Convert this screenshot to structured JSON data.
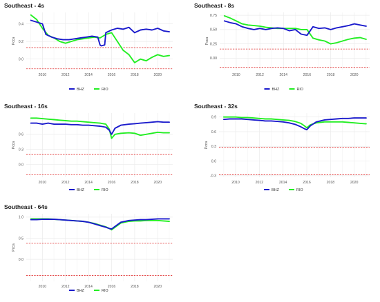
{
  "colors": {
    "BHZ": "#1a1acc",
    "RIO": "#22ee22",
    "threshold": "#e03030",
    "grid": "#ebebeb"
  },
  "chart_data": [
    {
      "type": "line",
      "title": "Southeast - 4s",
      "ylabel": "Pcca",
      "x_ticks": [
        "2010",
        "2012",
        "2014",
        "2016",
        "2018",
        "2020"
      ],
      "xlim": [
        2008.6,
        2021.3
      ],
      "ylim": [
        -0.12,
        0.53
      ],
      "y_ticks": [
        0.0,
        0.2,
        0.4
      ],
      "y_tick_labels": [
        "0.0",
        "0.2",
        "0.4"
      ],
      "thresholds": [
        0.13,
        -0.11
      ],
      "grid": true,
      "legend_placement": "bottom",
      "series": [
        {
          "name": "BHZ",
          "x": [
            2009.0,
            2009.5,
            2010.0,
            2010.3,
            2010.8,
            2011.3,
            2011.8,
            2012.3,
            2012.8,
            2013.3,
            2013.8,
            2014.3,
            2014.8,
            2015.0,
            2015.1,
            2015.4,
            2015.5,
            2016.0,
            2016.5,
            2017.0,
            2017.5,
            2018.0,
            2018.5,
            2019.0,
            2019.5,
            2020.0,
            2020.5,
            2021.0
          ],
          "y": [
            0.44,
            0.42,
            0.4,
            0.28,
            0.25,
            0.23,
            0.22,
            0.22,
            0.23,
            0.24,
            0.25,
            0.26,
            0.25,
            0.16,
            0.15,
            0.16,
            0.3,
            0.33,
            0.35,
            0.34,
            0.36,
            0.3,
            0.33,
            0.34,
            0.33,
            0.35,
            0.32,
            0.31
          ]
        },
        {
          "name": "RIO",
          "x": [
            2009.0,
            2009.5,
            2010.0,
            2010.5,
            2011.0,
            2011.5,
            2012.0,
            2012.5,
            2013.0,
            2013.5,
            2014.0,
            2014.5,
            2015.0,
            2015.5,
            2016.0,
            2016.5,
            2017.0,
            2017.5,
            2018.0,
            2018.5,
            2019.0,
            2019.5,
            2020.0,
            2020.5,
            2021.0
          ],
          "y": [
            0.5,
            0.45,
            0.35,
            0.27,
            0.24,
            0.2,
            0.18,
            0.2,
            0.22,
            0.23,
            0.24,
            0.25,
            0.24,
            0.28,
            0.3,
            0.2,
            0.1,
            0.05,
            -0.04,
            0.0,
            -0.02,
            0.02,
            0.05,
            0.03,
            0.04
          ]
        }
      ]
    },
    {
      "type": "line",
      "title": "Southeast - 8s",
      "ylabel": "Pcca",
      "x_ticks": [
        "2010",
        "2012",
        "2014",
        "2016",
        "2018",
        "2020"
      ],
      "xlim": [
        2008.6,
        2021.3
      ],
      "ylim": [
        -0.2,
        0.8
      ],
      "y_ticks": [
        0.0,
        0.25,
        0.5,
        0.75
      ],
      "y_tick_labels": [
        "0.00",
        "0.25",
        "0.50",
        "0.75"
      ],
      "thresholds": [
        0.16,
        -0.16
      ],
      "grid": true,
      "legend_placement": "bottom",
      "series": [
        {
          "name": "BHZ",
          "x": [
            2009.0,
            2009.5,
            2010.0,
            2010.5,
            2011.0,
            2011.5,
            2012.0,
            2012.5,
            2013.0,
            2013.5,
            2014.0,
            2014.5,
            2015.0,
            2015.5,
            2016.0,
            2016.5,
            2017.0,
            2017.5,
            2018.0,
            2018.5,
            2019.0,
            2019.5,
            2020.0,
            2020.5,
            2021.0
          ],
          "y": [
            0.65,
            0.62,
            0.6,
            0.55,
            0.52,
            0.5,
            0.52,
            0.5,
            0.52,
            0.53,
            0.52,
            0.48,
            0.5,
            0.42,
            0.4,
            0.55,
            0.52,
            0.53,
            0.5,
            0.53,
            0.55,
            0.57,
            0.6,
            0.58,
            0.56
          ]
        },
        {
          "name": "RIO",
          "x": [
            2009.0,
            2009.5,
            2010.0,
            2010.5,
            2011.0,
            2011.5,
            2012.0,
            2012.5,
            2013.0,
            2013.5,
            2014.0,
            2014.5,
            2015.0,
            2015.5,
            2016.0,
            2016.5,
            2017.0,
            2017.5,
            2018.0,
            2018.5,
            2019.0,
            2019.5,
            2020.0,
            2020.5,
            2021.0
          ],
          "y": [
            0.74,
            0.7,
            0.65,
            0.6,
            0.58,
            0.57,
            0.56,
            0.54,
            0.53,
            0.52,
            0.52,
            0.52,
            0.52,
            0.5,
            0.5,
            0.35,
            0.32,
            0.3,
            0.25,
            0.27,
            0.3,
            0.33,
            0.35,
            0.36,
            0.33
          ]
        }
      ]
    },
    {
      "type": "line",
      "title": "Southeast - 16s",
      "ylabel": "Pcca",
      "x_ticks": [
        "2010",
        "2012",
        "2014",
        "2016",
        "2018",
        "2020"
      ],
      "xlim": [
        2008.6,
        2021.3
      ],
      "ylim": [
        -0.25,
        1.02
      ],
      "y_ticks": [
        0.0,
        0.3,
        0.6
      ],
      "y_tick_labels": [
        "0.0",
        "0.3",
        "0.6"
      ],
      "thresholds": [
        0.2,
        -0.2
      ],
      "grid": true,
      "legend_placement": "bottom",
      "series": [
        {
          "name": "BHZ",
          "x": [
            2009.0,
            2009.5,
            2010.0,
            2010.5,
            2011.0,
            2011.5,
            2012.0,
            2012.5,
            2013.0,
            2013.5,
            2014.0,
            2014.5,
            2015.0,
            2015.5,
            2015.8,
            2016.0,
            2016.3,
            2016.8,
            2017.5,
            2018.0,
            2018.5,
            2019.0,
            2019.5,
            2020.0,
            2020.5,
            2021.0
          ],
          "y": [
            0.82,
            0.82,
            0.8,
            0.82,
            0.8,
            0.8,
            0.8,
            0.79,
            0.79,
            0.78,
            0.78,
            0.77,
            0.76,
            0.74,
            0.68,
            0.6,
            0.72,
            0.78,
            0.8,
            0.81,
            0.82,
            0.83,
            0.84,
            0.85,
            0.84,
            0.84
          ]
        },
        {
          "name": "RIO",
          "x": [
            2009.0,
            2009.5,
            2010.0,
            2010.5,
            2011.0,
            2011.5,
            2012.0,
            2012.5,
            2013.0,
            2013.5,
            2014.0,
            2014.5,
            2015.0,
            2015.5,
            2015.8,
            2016.0,
            2016.3,
            2016.8,
            2017.5,
            2018.0,
            2018.5,
            2019.0,
            2019.5,
            2020.0,
            2020.5,
            2021.0
          ],
          "y": [
            0.92,
            0.92,
            0.91,
            0.9,
            0.89,
            0.88,
            0.87,
            0.86,
            0.86,
            0.85,
            0.84,
            0.83,
            0.82,
            0.8,
            0.7,
            0.52,
            0.6,
            0.62,
            0.63,
            0.62,
            0.58,
            0.6,
            0.62,
            0.64,
            0.63,
            0.63
          ]
        }
      ]
    },
    {
      "type": "line",
      "title": "Southeast - 32s",
      "ylabel": "Pcca",
      "x_ticks": [
        "2010",
        "2012",
        "2014",
        "2016",
        "2018",
        "2020"
      ],
      "xlim": [
        2008.6,
        2021.3
      ],
      "ylim": [
        -0.33,
        0.98
      ],
      "y_ticks": [
        -0.3,
        0.0,
        0.3,
        0.6,
        0.9
      ],
      "y_tick_labels": [
        "-0.3",
        "0.0",
        "0.3",
        "0.6",
        "0.9"
      ],
      "thresholds": [
        0.28,
        -0.28
      ],
      "grid": true,
      "legend_placement": "bottom",
      "series": [
        {
          "name": "BHZ",
          "x": [
            2009.0,
            2009.5,
            2010.0,
            2010.5,
            2011.0,
            2011.5,
            2012.0,
            2012.5,
            2013.0,
            2013.5,
            2014.0,
            2014.5,
            2015.0,
            2015.5,
            2015.8,
            2016.0,
            2016.3,
            2016.8,
            2017.5,
            2018.0,
            2018.5,
            2019.0,
            2019.5,
            2020.0,
            2020.5,
            2021.0
          ],
          "y": [
            0.85,
            0.86,
            0.86,
            0.86,
            0.85,
            0.84,
            0.83,
            0.82,
            0.82,
            0.81,
            0.8,
            0.78,
            0.75,
            0.7,
            0.66,
            0.64,
            0.72,
            0.8,
            0.84,
            0.85,
            0.86,
            0.87,
            0.87,
            0.88,
            0.88,
            0.88
          ]
        },
        {
          "name": "RIO",
          "x": [
            2009.0,
            2009.5,
            2010.0,
            2010.5,
            2011.0,
            2011.5,
            2012.0,
            2012.5,
            2013.0,
            2013.5,
            2014.0,
            2014.5,
            2015.0,
            2015.5,
            2015.8,
            2016.0,
            2016.3,
            2016.8,
            2017.5,
            2018.0,
            2018.5,
            2019.0,
            2019.5,
            2020.0,
            2020.5,
            2021.0
          ],
          "y": [
            0.9,
            0.9,
            0.9,
            0.89,
            0.89,
            0.88,
            0.87,
            0.86,
            0.86,
            0.85,
            0.84,
            0.83,
            0.81,
            0.77,
            0.72,
            0.68,
            0.74,
            0.78,
            0.8,
            0.8,
            0.8,
            0.8,
            0.79,
            0.78,
            0.77,
            0.76
          ]
        }
      ]
    },
    {
      "type": "line",
      "title": "Southeast - 64s",
      "ylabel": "Pcca",
      "x_ticks": [
        "2010",
        "2012",
        "2014",
        "2016",
        "2018",
        "2020"
      ],
      "xlim": [
        2008.6,
        2021.3
      ],
      "ylim": [
        -0.52,
        1.08
      ],
      "y_ticks": [
        0.0,
        0.5,
        1.0
      ],
      "y_tick_labels": [
        "0.0",
        "0.5",
        "1.0"
      ],
      "thresholds": [
        0.38,
        -0.38
      ],
      "grid": true,
      "legend_placement": "bottom",
      "series": [
        {
          "name": "BHZ",
          "x": [
            2009.0,
            2009.5,
            2010.0,
            2010.5,
            2011.0,
            2011.5,
            2012.0,
            2012.5,
            2013.0,
            2013.5,
            2014.0,
            2014.5,
            2015.0,
            2015.5,
            2015.8,
            2016.0,
            2016.3,
            2016.8,
            2017.5,
            2018.0,
            2018.5,
            2019.0,
            2019.5,
            2020.0,
            2020.5,
            2021.0
          ],
          "y": [
            0.94,
            0.94,
            0.95,
            0.95,
            0.95,
            0.94,
            0.93,
            0.92,
            0.91,
            0.9,
            0.88,
            0.84,
            0.8,
            0.76,
            0.73,
            0.72,
            0.78,
            0.88,
            0.92,
            0.93,
            0.94,
            0.94,
            0.95,
            0.96,
            0.96,
            0.96
          ]
        },
        {
          "name": "RIO",
          "x": [
            2009.0,
            2009.5,
            2010.0,
            2010.5,
            2011.0,
            2011.5,
            2012.0,
            2012.5,
            2013.0,
            2013.5,
            2014.0,
            2014.5,
            2015.0,
            2015.5,
            2015.8,
            2016.0,
            2016.3,
            2016.8,
            2017.5,
            2018.0,
            2018.5,
            2019.0,
            2019.5,
            2020.0,
            2020.5,
            2021.0
          ],
          "y": [
            0.96,
            0.96,
            0.96,
            0.96,
            0.95,
            0.94,
            0.93,
            0.92,
            0.91,
            0.9,
            0.88,
            0.85,
            0.81,
            0.77,
            0.73,
            0.7,
            0.76,
            0.86,
            0.9,
            0.91,
            0.91,
            0.92,
            0.92,
            0.92,
            0.91,
            0.9
          ]
        }
      ]
    }
  ]
}
